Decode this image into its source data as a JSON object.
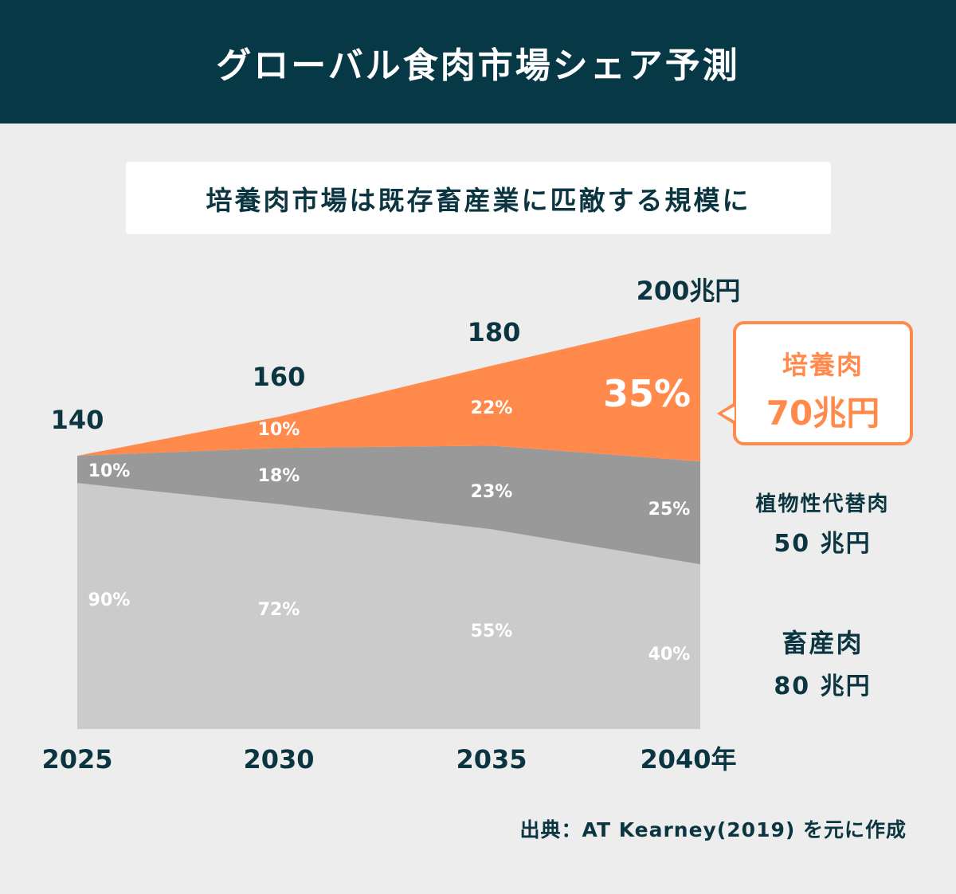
{
  "header": {
    "title": "グローバル食肉市場シェア予測"
  },
  "subtitle": "培養肉市場は既存畜産業に匹敵する規模に",
  "source": "出典：AT Kearney(2019) を元に作成",
  "chart_data": {
    "type": "area",
    "stacked": true,
    "title": "グローバル食肉市場シェア予測",
    "x": [
      "2025",
      "2030",
      "2035",
      "2040年"
    ],
    "totals": [
      140,
      160,
      180,
      200
    ],
    "total_labels": [
      "140",
      "160",
      "180",
      "200兆円"
    ],
    "series": [
      {
        "name": "畜産肉",
        "color": "#cbcbcb",
        "share_pct": [
          90,
          72,
          55,
          40
        ],
        "labels": [
          "90%",
          "72%",
          "55%",
          "40%"
        ]
      },
      {
        "name": "植物性代替肉",
        "color": "#999999",
        "share_pct": [
          10,
          18,
          23,
          25
        ],
        "labels": [
          "10%",
          "18%",
          "23%",
          "25%"
        ]
      },
      {
        "name": "培養肉",
        "color": "#ff8a4c",
        "share_pct": [
          0,
          10,
          22,
          35
        ],
        "labels": [
          "",
          "10%",
          "22%",
          "35%"
        ]
      }
    ],
    "end_labels": [
      {
        "name": "培養肉",
        "value": "70兆円"
      },
      {
        "name": "植物性代替肉",
        "value": "50 兆円"
      },
      {
        "name": "畜産肉",
        "value": "80 兆円"
      }
    ],
    "legend": "right",
    "grid": false
  }
}
